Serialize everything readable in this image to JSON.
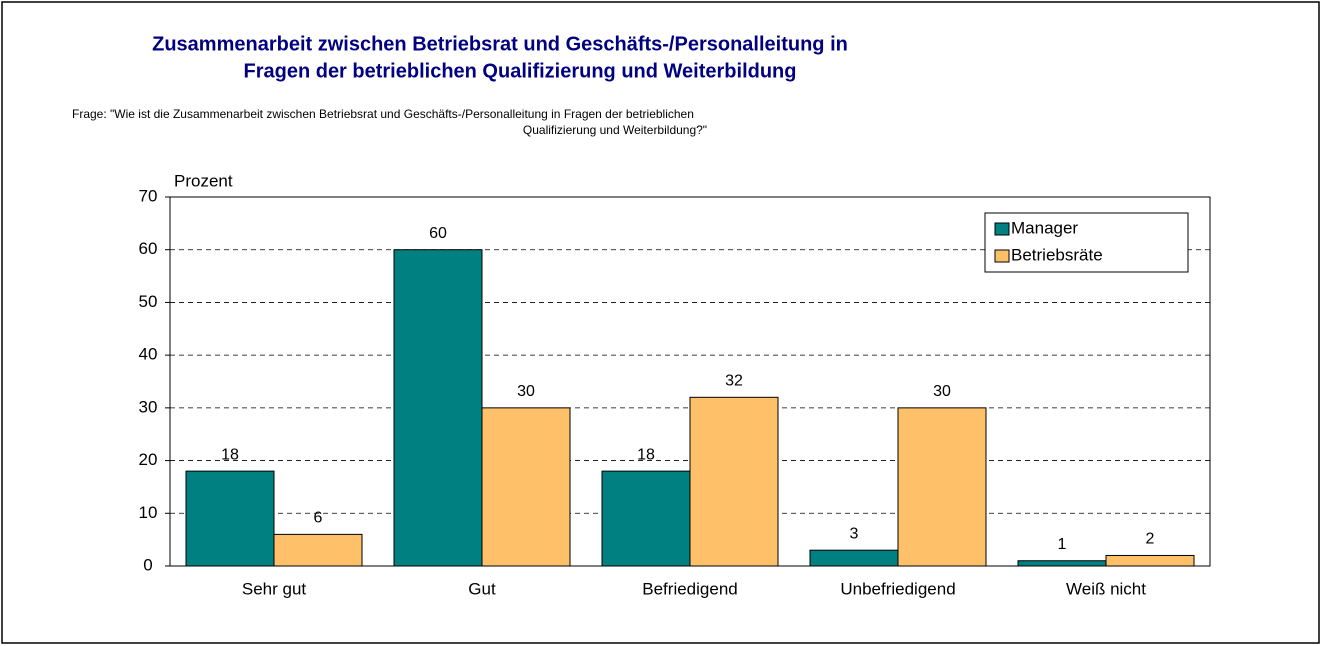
{
  "chart_data": {
    "type": "bar",
    "title": [
      "Zusammenarbeit zwischen Betriebsrat und Geschäfts-/Personalleitung in",
      "Fragen der betrieblichen Qualifizierung und Weiterbildung"
    ],
    "subtitle": [
      "Frage: \"Wie ist die Zusammenarbeit zwischen Betriebsrat und Geschäfts-/Personalleitung in Fragen der betrieblichen",
      "Qualifizierung und Weiterbildung?\""
    ],
    "y_label": "Prozent",
    "categories": [
      "Sehr gut",
      "Gut",
      "Befriedigend",
      "Unbefriedigend",
      "Weiß nicht"
    ],
    "series": [
      {
        "name": "Manager",
        "color": "#008080",
        "values": [
          18,
          60,
          18,
          3,
          1
        ]
      },
      {
        "name": "Betriebsräte",
        "color": "#FFC06A",
        "values": [
          6,
          30,
          32,
          30,
          2
        ]
      }
    ],
    "ylim": [
      0,
      70
    ],
    "yticks": [
      0,
      10,
      20,
      30,
      40,
      50,
      60,
      70
    ],
    "grid": true,
    "legend": "top-right"
  }
}
